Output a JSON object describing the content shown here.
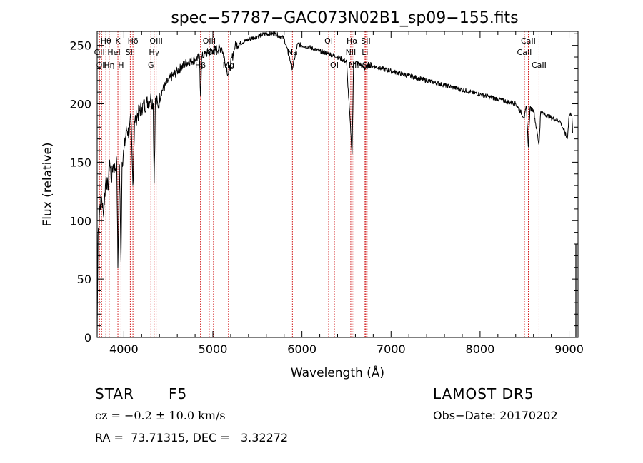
{
  "chart_data": {
    "type": "line",
    "title": "spec−57787−GAC073N02B1_sp09−155.fits",
    "xlabel": "Wavelength (Å)",
    "ylabel": "Flux (relative)",
    "xlim": [
      3700,
      9100
    ],
    "ylim": [
      0,
      262
    ],
    "x_ticks": [
      4000,
      5000,
      6000,
      7000,
      8000,
      9000
    ],
    "y_ticks": [
      0,
      50,
      100,
      150,
      200,
      250
    ],
    "series": [
      {
        "color": "#000000",
        "points": [
          [
            3700,
            0
          ],
          [
            3710,
            88
          ],
          [
            3730,
            112
          ],
          [
            3750,
            120
          ],
          [
            3770,
            105
          ],
          [
            3800,
            138
          ],
          [
            3820,
            126
          ],
          [
            3840,
            152
          ],
          [
            3860,
            135
          ],
          [
            3880,
            148
          ],
          [
            3900,
            144
          ],
          [
            3920,
            150
          ],
          [
            3933,
            60
          ],
          [
            3950,
            148
          ],
          [
            3968,
            65
          ],
          [
            3980,
            150
          ],
          [
            4000,
            160
          ],
          [
            4030,
            178
          ],
          [
            4060,
            175
          ],
          [
            4080,
            188
          ],
          [
            4101,
            130
          ],
          [
            4120,
            185
          ],
          [
            4150,
            190
          ],
          [
            4200,
            197
          ],
          [
            4250,
            200
          ],
          [
            4300,
            205
          ],
          [
            4330,
            200
          ],
          [
            4340,
            132
          ],
          [
            4355,
            205
          ],
          [
            4383,
            198
          ],
          [
            4420,
            210
          ],
          [
            4500,
            220
          ],
          [
            4600,
            228
          ],
          [
            4700,
            235
          ],
          [
            4800,
            238
          ],
          [
            4850,
            240
          ],
          [
            4861,
            207
          ],
          [
            4875,
            240
          ],
          [
            4920,
            243
          ],
          [
            5000,
            246
          ],
          [
            5100,
            248
          ],
          [
            5172,
            225
          ],
          [
            5250,
            250
          ],
          [
            5400,
            255
          ],
          [
            5500,
            258
          ],
          [
            5600,
            260
          ],
          [
            5700,
            260
          ],
          [
            5800,
            256
          ],
          [
            5893,
            230
          ],
          [
            5950,
            251
          ],
          [
            6000,
            250
          ],
          [
            6100,
            248
          ],
          [
            6200,
            245
          ],
          [
            6300,
            243
          ],
          [
            6400,
            240
          ],
          [
            6500,
            236
          ],
          [
            6563,
            157
          ],
          [
            6580,
            236
          ],
          [
            6650,
            234
          ],
          [
            6708,
            230
          ],
          [
            6750,
            233
          ],
          [
            6900,
            230
          ],
          [
            7000,
            228
          ],
          [
            7200,
            224
          ],
          [
            7400,
            220
          ],
          [
            7600,
            216
          ],
          [
            7800,
            212
          ],
          [
            8000,
            208
          ],
          [
            8200,
            204
          ],
          [
            8400,
            200
          ],
          [
            8498,
            188
          ],
          [
            8520,
            198
          ],
          [
            8542,
            163
          ],
          [
            8560,
            196
          ],
          [
            8600,
            195
          ],
          [
            8662,
            165
          ],
          [
            8680,
            193
          ],
          [
            8800,
            188
          ],
          [
            8900,
            185
          ],
          [
            8980,
            170
          ],
          [
            9000,
            190
          ],
          [
            9030,
            192
          ],
          [
            9040,
            175
          ]
        ]
      }
    ],
    "line_markers": [
      {
        "wavelength": 3726,
        "label": "OII",
        "row": 2
      },
      {
        "wavelength": 3750,
        "label": "OII",
        "row": 3
      },
      {
        "wavelength": 3798,
        "label": "Hθ",
        "row": 1
      },
      {
        "wavelength": 3835,
        "label": "Hη",
        "row": 3
      },
      {
        "wavelength": 3889,
        "label": "HeI",
        "row": 2
      },
      {
        "wavelength": 3933,
        "label": "K",
        "row": 1
      },
      {
        "wavelength": 3968,
        "label": "H",
        "row": 3
      },
      {
        "wavelength": 4072,
        "label": "SII",
        "row": 2
      },
      {
        "wavelength": 4102,
        "label": "Hδ",
        "row": 1
      },
      {
        "wavelength": 4304,
        "label": "G",
        "row": 3
      },
      {
        "wavelength": 4340,
        "label": "Hγ",
        "row": 2
      },
      {
        "wavelength": 4363,
        "label": "OIII",
        "row": 1
      },
      {
        "wavelength": 4861,
        "label": "Hβ",
        "row": 3
      },
      {
        "wavelength": 4959,
        "label": "OIII",
        "row": 1
      },
      {
        "wavelength": 5007,
        "label": "OIII",
        "row": 2
      },
      {
        "wavelength": 5175,
        "label": "Mg",
        "row": 3
      },
      {
        "wavelength": 5893,
        "label": "Na",
        "row": 2
      },
      {
        "wavelength": 6300,
        "label": "OI",
        "row": 1
      },
      {
        "wavelength": 6364,
        "label": "OI",
        "row": 3
      },
      {
        "wavelength": 6548,
        "label": "NII",
        "row": 2
      },
      {
        "wavelength": 6563,
        "label": "Hα",
        "row": 1
      },
      {
        "wavelength": 6583,
        "label": "NII",
        "row": 3
      },
      {
        "wavelength": 6708,
        "label": "Li",
        "row": 2
      },
      {
        "wavelength": 6717,
        "label": "SII",
        "row": 1
      },
      {
        "wavelength": 6731,
        "label": "SII",
        "row": 3
      },
      {
        "wavelength": 8498,
        "label": "CaII",
        "row": 2
      },
      {
        "wavelength": 8542,
        "label": "CaII",
        "row": 1
      },
      {
        "wavelength": 8662,
        "label": "CaII",
        "row": 3
      }
    ],
    "colors": {
      "spectrum": "#000000",
      "markers": "#cc0000",
      "axes": "#000000"
    },
    "grid": false
  },
  "info": {
    "object_class": "STAR",
    "subclass": "F5",
    "survey": "LAMOST DR5",
    "redshift_text": "cz = −0.2 ± 10.0 km/s",
    "obs_date": "Obs−Date: 20170202",
    "coords": "RA =  73.71315, DEC =   3.32272"
  }
}
